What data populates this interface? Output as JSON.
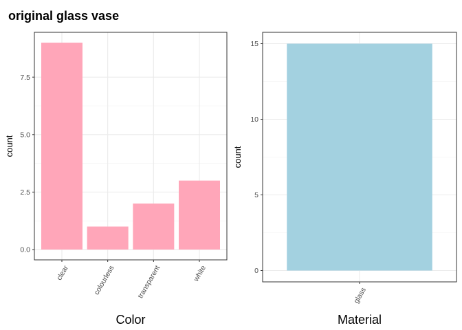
{
  "title": "original glass vase",
  "chart_data": [
    {
      "type": "bar",
      "categories": [
        "clear",
        "colourless",
        "transparent",
        "white"
      ],
      "values": [
        9,
        1,
        2,
        3
      ],
      "xlabel": "Color",
      "ylabel": "count",
      "ylim": [
        -0.45,
        9.45
      ],
      "yticks": [
        0,
        2.5,
        5,
        7.5
      ],
      "ytick_labels": [
        "0.0",
        "2.5",
        "5.0",
        "7.5"
      ],
      "bar_color": "#ffa6b9",
      "grid": true,
      "x_tick_rotation": "60deg"
    },
    {
      "type": "bar",
      "categories": [
        "glass"
      ],
      "values": [
        15
      ],
      "xlabel": "Material",
      "ylabel": "count",
      "ylim": [
        -0.75,
        15.75
      ],
      "yticks": [
        0,
        5,
        10,
        15
      ],
      "ytick_labels": [
        "0",
        "5",
        "10",
        "15"
      ],
      "bar_color": "#a3d1e0",
      "grid": true,
      "x_tick_rotation": "60deg"
    }
  ]
}
